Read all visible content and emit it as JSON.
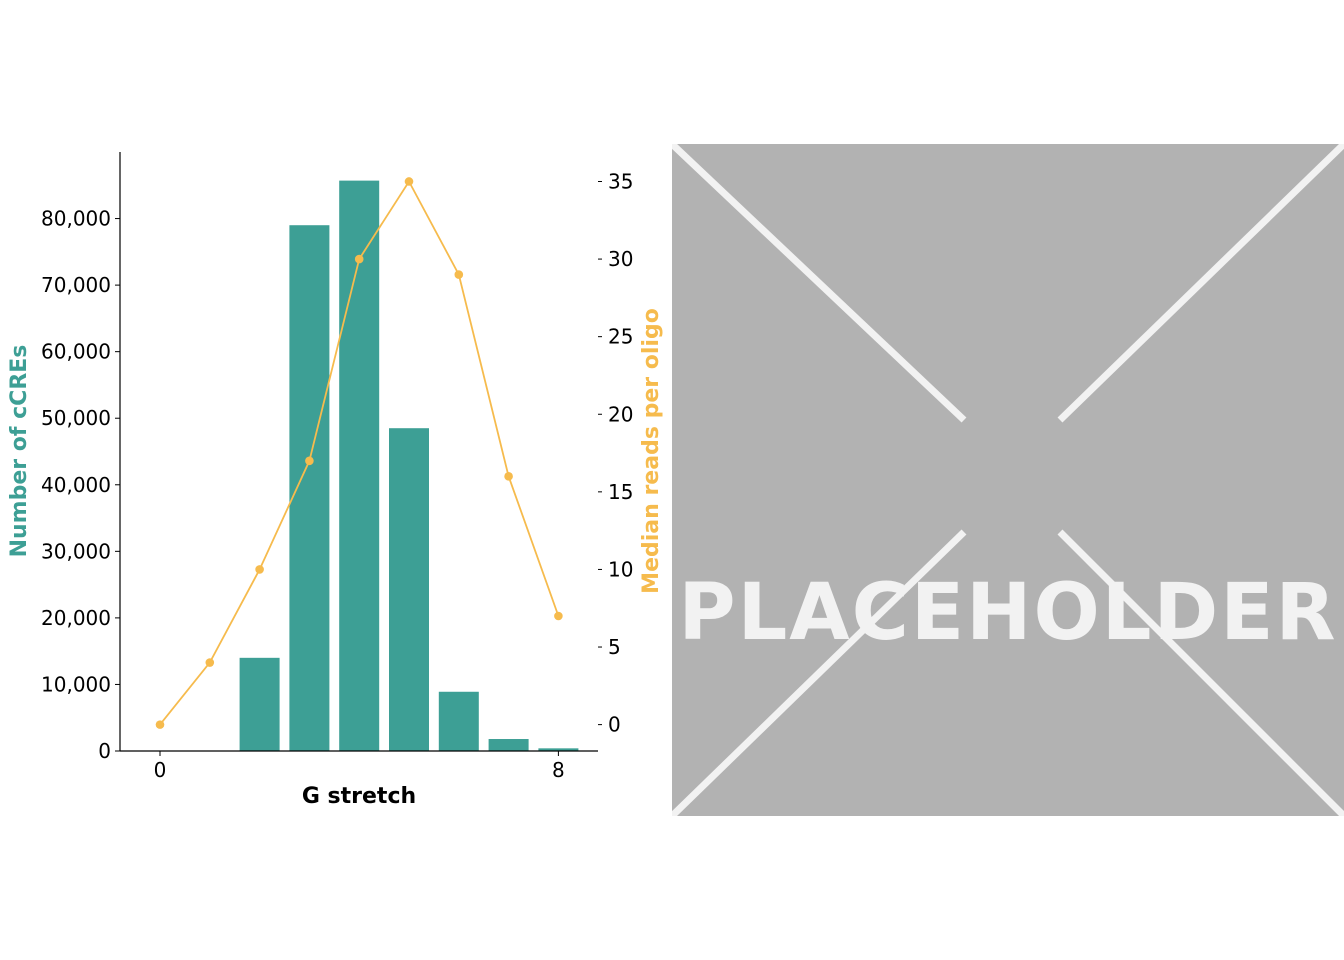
{
  "chart_data": {
    "type": "bar",
    "x": [
      0,
      1,
      2,
      3,
      4,
      5,
      6,
      7,
      8
    ],
    "series": [
      {
        "type": "bar",
        "axis": "left",
        "color": "#3d9f95",
        "values": [
          null,
          null,
          14000,
          79000,
          85700,
          48500,
          8900,
          1800,
          400
        ]
      },
      {
        "type": "line",
        "axis": "right",
        "color": "#f6bb4d",
        "values": [
          0,
          4,
          10,
          17,
          30,
          35,
          29,
          16,
          7
        ]
      }
    ],
    "xlabel": "G stretch",
    "ylabel": "Number of cCREs",
    "y2label": "Median reads per oligo",
    "xticks": [
      0,
      8
    ],
    "yticks": [
      0,
      10000,
      20000,
      30000,
      40000,
      50000,
      60000,
      70000,
      80000
    ],
    "ytick_labels": [
      "0",
      "10,000",
      "20,000",
      "30,000",
      "40,000",
      "50,000",
      "60,000",
      "70,000",
      "80,000"
    ],
    "y2ticks": [
      0,
      5,
      10,
      15,
      20,
      25,
      30,
      35
    ],
    "ylim": [
      0,
      90000
    ],
    "y2lim": [
      -1.7,
      36.9
    ],
    "grid": false
  },
  "placeholder": {
    "text": "PLACEHOLDER",
    "bg_color": "#b2b2b2",
    "line_color": "#f2f2f2"
  }
}
